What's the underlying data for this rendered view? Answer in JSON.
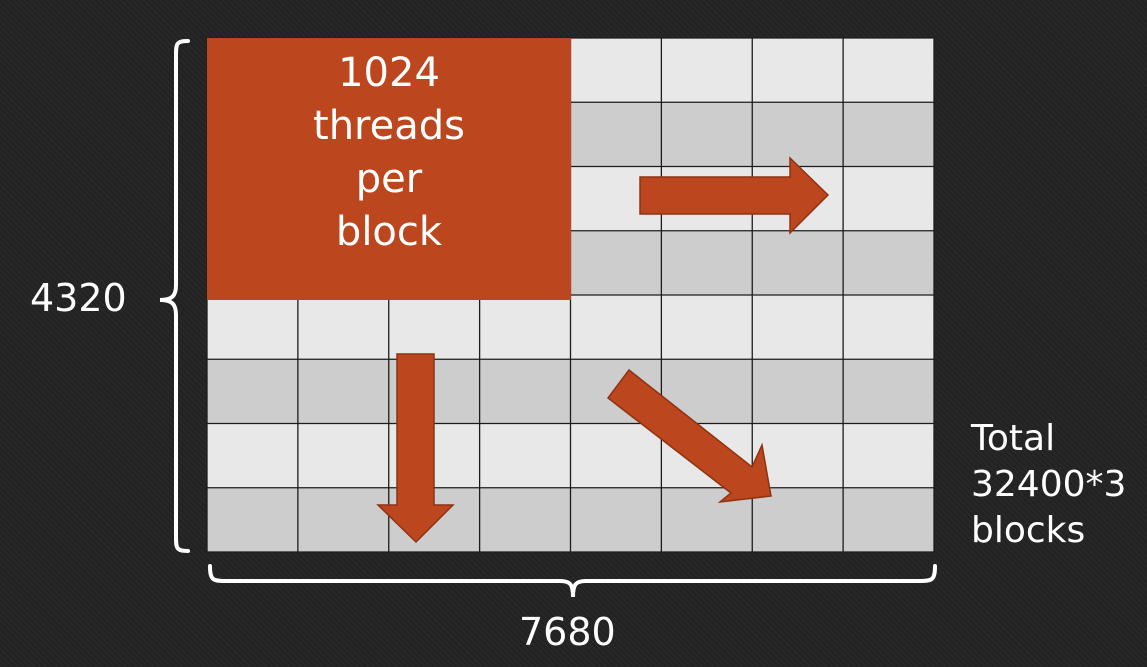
{
  "diagram": {
    "height_label": "4320",
    "width_label": "7680",
    "block_label_lines": [
      "1024",
      "threads",
      "per",
      "block"
    ],
    "total_label_lines": [
      "Total",
      "32400*3",
      "blocks"
    ]
  },
  "colors": {
    "background": "#232323",
    "block": "#bc461d",
    "cell_light": "#e8e8e8",
    "cell_dark": "#cdcdcd",
    "grid_line": "#1c1c1c",
    "arrow_fill": "#bc461d",
    "arrow_stroke": "#8f3212",
    "bracket": "#ffffff"
  },
  "icons": [
    "arrow-right-icon",
    "arrow-down-icon",
    "arrow-diagonal-icon",
    "left-brace-icon",
    "bottom-brace-icon"
  ]
}
